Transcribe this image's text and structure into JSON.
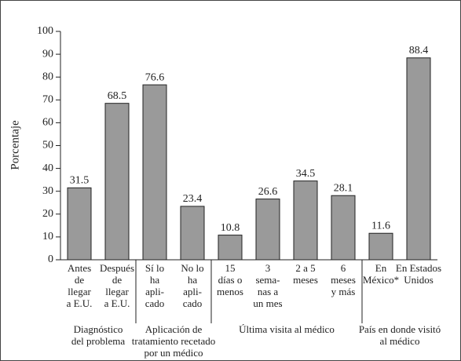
{
  "chart_data": {
    "type": "bar",
    "y_label": "Porcentaje",
    "color": "#9a9a9a",
    "ylim": [
      0,
      100
    ],
    "yticks": [
      0,
      10,
      20,
      30,
      40,
      50,
      60,
      70,
      80,
      90,
      100
    ],
    "groups": [
      {
        "label": [
          "Diagnóstico",
          "del problema"
        ],
        "categories": [
          [
            "Antes",
            "de",
            "llegar",
            "a E.U."
          ],
          [
            "Después",
            "de",
            "llegar",
            "a E.U."
          ]
        ],
        "values": [
          31.5,
          68.5
        ]
      },
      {
        "label": [
          "Aplicación de",
          "tratamiento recetado",
          "por un médico"
        ],
        "categories": [
          [
            "Sí lo",
            "ha",
            "apli-",
            "cado"
          ],
          [
            "No lo",
            "ha",
            "apli-",
            "cado"
          ]
        ],
        "values": [
          76.6,
          23.4
        ]
      },
      {
        "label": [
          "Última visita al médico"
        ],
        "categories": [
          [
            "15",
            "días o",
            "menos"
          ],
          [
            "3",
            "sema-",
            "nas a",
            "un mes"
          ],
          [
            "2 a 5",
            "meses"
          ],
          [
            "6",
            "meses",
            "y más"
          ]
        ],
        "values": [
          10.8,
          26.6,
          34.5,
          28.1
        ]
      },
      {
        "label": [
          "País en donde visitó",
          "al médico"
        ],
        "categories": [
          [
            "En",
            "México*"
          ],
          [
            "En Estados",
            "Unidos"
          ]
        ],
        "values": [
          11.6,
          88.4
        ]
      }
    ]
  }
}
